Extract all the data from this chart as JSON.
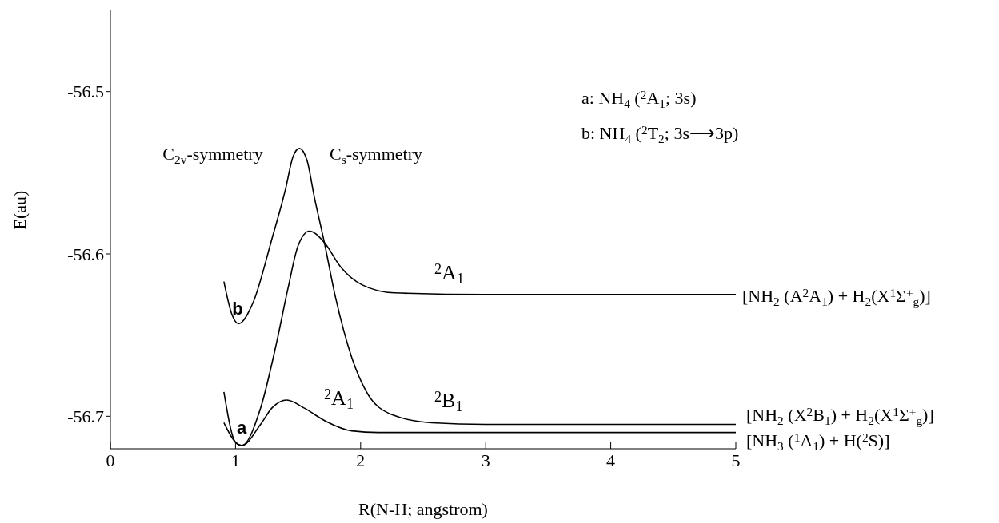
{
  "chart_data": {
    "type": "line",
    "xlabel": "R(N-H; angstrom)",
    "ylabel": "E(au)",
    "xlim": [
      0,
      5
    ],
    "xticks": [
      0,
      1,
      2,
      3,
      4,
      5
    ],
    "ylim": [
      -56.72,
      -56.45
    ],
    "yticks": [
      -56.5,
      -56.6,
      -56.7
    ],
    "series": [
      {
        "color": "#000000",
        "x": [
          0.907,
          0.97,
          1.024,
          1.14,
          1.29,
          1.4,
          1.46,
          1.51,
          1.57,
          1.63,
          1.71,
          1.8,
          1.93,
          2.04,
          2.25,
          2.57,
          3,
          4,
          5
        ],
        "values": [
          -56.617,
          -56.637,
          -56.643,
          -56.63,
          -56.591,
          -56.56,
          -56.54,
          -56.535,
          -56.542,
          -56.565,
          -56.593,
          -56.627,
          -56.664,
          -56.684,
          -56.699,
          -56.704,
          -56.705,
          -56.705,
          -56.705
        ]
      },
      {
        "color": "#000000",
        "x": [
          0.907,
          1.0,
          1.05,
          1.2,
          1.33,
          1.42,
          1.5,
          1.59,
          1.71,
          1.84,
          2.01,
          2.27,
          3,
          4,
          5
        ],
        "values": [
          -56.685,
          -56.716,
          -56.718,
          -56.695,
          -56.654,
          -56.621,
          -56.595,
          -56.586,
          -56.593,
          -56.608,
          -56.619,
          -56.624,
          -56.625,
          -56.625,
          -56.625
        ]
      },
      {
        "color": "#000000",
        "x": [
          0.907,
          1.0,
          1.05,
          1.2,
          1.29,
          1.41,
          1.55,
          1.72,
          1.93,
          2.14,
          3,
          4,
          5
        ],
        "values": [
          -56.704,
          -56.716,
          -56.718,
          -56.705,
          -56.695,
          -56.69,
          -56.695,
          -56.703,
          -56.709,
          -56.71,
          -56.71,
          -56.71,
          -56.71
        ]
      }
    ],
    "annotations": [
      "a: NH$_{4}$ ($^{2}$A$_{1}$; 3s)",
      "b: NH$_{4}$ ($^{2}$T$_{2}$; 3s⟶3p)",
      "C$_{2v}$-symmetry",
      "C$_{s}$-symmetry",
      "a",
      "b",
      "$^{2}$A$_{1}$",
      "$^{2}$A$_{1}$",
      "$^{2}$B$_{1}$",
      "[NH$_{2}$ (A$^{2}$A$_{1}$) + H$_{2}$(X$^{1}$Σ$^{+}$$_{g}$)]",
      "[NH$_{2}$ (X$^{2}$B$_{1}$) + H$_{2}$(X$^{1}$Σ$^{+}$$_{g}$)]",
      "[NH$_{3}$ ($^{1}$A$_{1}$) + H($^{2}$S)]"
    ]
  }
}
